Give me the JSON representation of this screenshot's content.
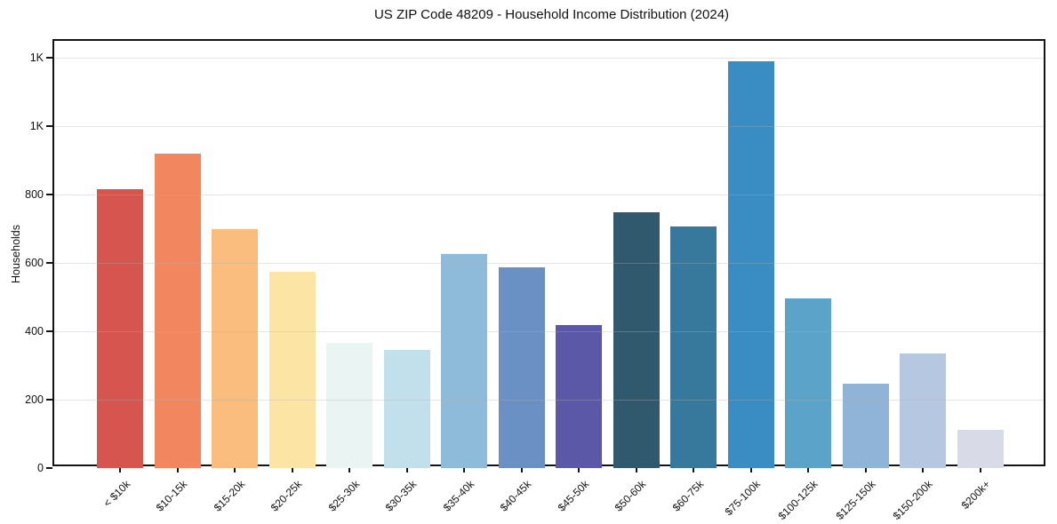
{
  "chart_data": {
    "type": "bar",
    "title": "US ZIP Code 48209 - Household Income Distribution (2024)",
    "xlabel": "",
    "ylabel": "Households",
    "ylim": [
      0,
      1250
    ],
    "grid": true,
    "legend": false,
    "axis_color": "#141414",
    "grid_color": "#b0b0b0",
    "text_color": "#111111",
    "background_color": "#ffffff",
    "categories": [
      "< $10k",
      "$10-15k",
      "$15-20k",
      "$20-25k",
      "$25-30k",
      "$30-35k",
      "$35-40k",
      "$40-45k",
      "$45-50k",
      "$50-60k",
      "$60-75k",
      "$75-100k",
      "$100-125k",
      "$125-150k",
      "$150-200k",
      "$200k+"
    ],
    "values": [
      815,
      920,
      698,
      575,
      366,
      346,
      626,
      587,
      419,
      748,
      706,
      1190,
      497,
      246,
      334,
      113
    ],
    "bar_colors": [
      "#d6564f",
      "#f2875f",
      "#fabd7d",
      "#fce5a4",
      "#eaf4f2",
      "#c2e0ec",
      "#8fbbdb",
      "#6b90c4",
      "#5b58a8",
      "#31596d",
      "#36799d",
      "#3a8dc3",
      "#5ba3c8",
      "#8fb4d7",
      "#b6c8e1",
      "#d9dae8"
    ],
    "yticks": [
      {
        "value": 0,
        "label": "0"
      },
      {
        "value": 200,
        "label": "200"
      },
      {
        "value": 400,
        "label": "400"
      },
      {
        "value": 600,
        "label": "600"
      },
      {
        "value": 800,
        "label": "800"
      },
      {
        "value": 1000,
        "label": "1K"
      },
      {
        "value": 1200,
        "label": "1K"
      }
    ]
  }
}
